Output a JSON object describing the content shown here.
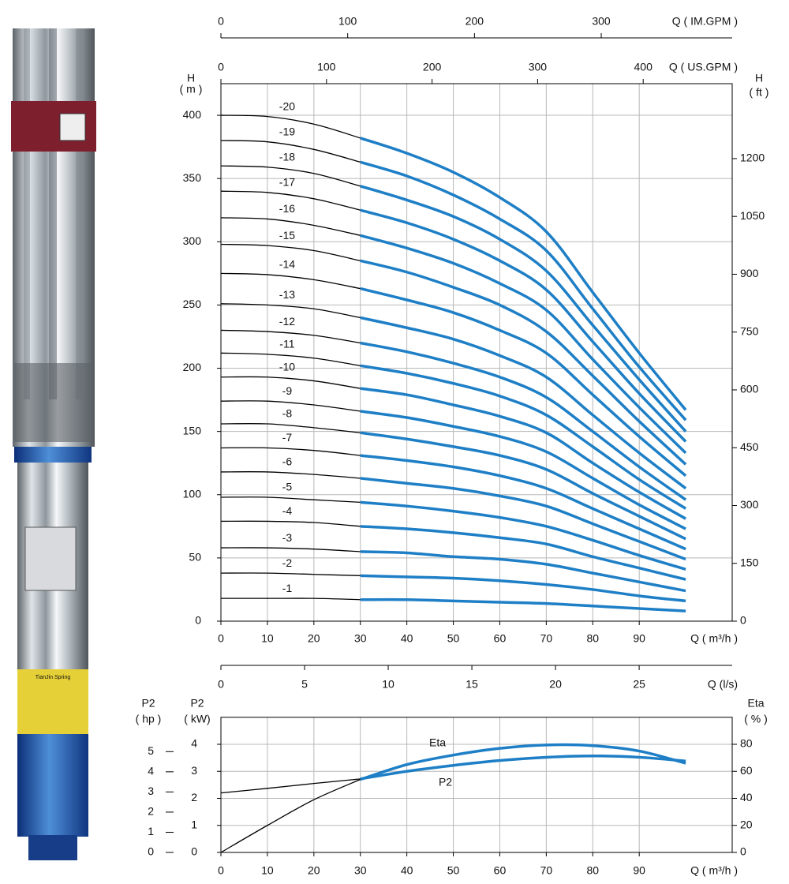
{
  "pump_label": "TianJin Spring",
  "chart_data": [
    {
      "type": "line",
      "x": [
        0,
        10,
        20,
        30,
        40,
        50,
        60,
        70,
        80,
        90,
        100
      ],
      "xlim": [
        0,
        110
      ],
      "xticks": [
        0,
        10,
        20,
        30,
        40,
        50,
        60,
        70,
        80,
        90
      ],
      "xlabel": "Q ( m³/h )",
      "x_axes": [
        {
          "label": "Q ( US.GPM )",
          "lim": [
            0,
            484.3
          ],
          "ticks": [
            0,
            100,
            200,
            300,
            400
          ]
        },
        {
          "label": "Q ( IM.GPM )",
          "lim": [
            0,
            403.3
          ],
          "ticks": [
            0,
            100,
            200,
            300
          ]
        }
      ],
      "ylabel": [
        "H",
        "( m )"
      ],
      "ylim": [
        0,
        425
      ],
      "yticks": [
        0,
        50,
        100,
        150,
        200,
        250,
        300,
        350,
        400
      ],
      "y2label": [
        "H",
        "( ft )"
      ],
      "y2lim": [
        0,
        1394.4
      ],
      "y2ticks": [
        0,
        150,
        300,
        450,
        600,
        750,
        900,
        1050,
        1200
      ],
      "grid": true,
      "operating_range": [
        30,
        100
      ],
      "color": "#1e7fc6",
      "outside_color": "#000000",
      "series": [
        {
          "name": "-20",
          "values": [
            400,
            399,
            393,
            382,
            370,
            355,
            335,
            308,
            260,
            212,
            167
          ]
        },
        {
          "name": "-19",
          "values": [
            380,
            379,
            373,
            363,
            352,
            337,
            318,
            293,
            247,
            201,
            159
          ]
        },
        {
          "name": "-18",
          "values": [
            360,
            359,
            354,
            344,
            333,
            320,
            302,
            277,
            234,
            191,
            150
          ]
        },
        {
          "name": "-17",
          "values": [
            340,
            339,
            334,
            325,
            315,
            302,
            285,
            262,
            221,
            180,
            142
          ]
        },
        {
          "name": "-16",
          "values": [
            319,
            318,
            313,
            305,
            295,
            283,
            267,
            246,
            207,
            169,
            133
          ]
        },
        {
          "name": "-15",
          "values": [
            298,
            297,
            293,
            285,
            276,
            264,
            250,
            229,
            194,
            158,
            124
          ]
        },
        {
          "name": "-14",
          "values": [
            275,
            274,
            270,
            263,
            254,
            244,
            230,
            212,
            179,
            146,
            115
          ]
        },
        {
          "name": "-13",
          "values": [
            251,
            250,
            247,
            240,
            232,
            223,
            210,
            193,
            163,
            133,
            105
          ]
        },
        {
          "name": "-12",
          "values": [
            230,
            229,
            226,
            220,
            213,
            204,
            193,
            177,
            150,
            122,
            96
          ]
        },
        {
          "name": "-11",
          "values": [
            212,
            211,
            208,
            202,
            196,
            188,
            178,
            163,
            138,
            112,
            89
          ]
        },
        {
          "name": "-10",
          "values": [
            193,
            193,
            190,
            184,
            179,
            171,
            162,
            149,
            125,
            102,
            81
          ]
        },
        {
          "name": "-9",
          "values": [
            174,
            174,
            171,
            166,
            161,
            154,
            146,
            134,
            113,
            92,
            73
          ]
        },
        {
          "name": "-8",
          "values": [
            156,
            156,
            153,
            149,
            144,
            138,
            131,
            120,
            101,
            83,
            65
          ]
        },
        {
          "name": "-7",
          "values": [
            137,
            137,
            135,
            131,
            127,
            122,
            115,
            105,
            89,
            73,
            57
          ]
        },
        {
          "name": "-6",
          "values": [
            118,
            118,
            116,
            113,
            109,
            105,
            99,
            91,
            77,
            63,
            49
          ]
        },
        {
          "name": "-5",
          "values": [
            98,
            98,
            96,
            94,
            91,
            87,
            82,
            75,
            64,
            52,
            41
          ]
        },
        {
          "name": "-4",
          "values": [
            79,
            79,
            78,
            75,
            73,
            70,
            66,
            61,
            51,
            42,
            33
          ]
        },
        {
          "name": "-3",
          "values": [
            58,
            58,
            57,
            55,
            54,
            51,
            49,
            45,
            38,
            31,
            24
          ]
        },
        {
          "name": "-2",
          "values": [
            38,
            38,
            37,
            36,
            35,
            34,
            32,
            29,
            25,
            20,
            16
          ]
        },
        {
          "name": "-1",
          "values": [
            18,
            18,
            18,
            17,
            17,
            16,
            15,
            14,
            12,
            10,
            8
          ]
        }
      ]
    },
    {
      "type": "line",
      "x": [
        0,
        10,
        20,
        30,
        40,
        50,
        60,
        70,
        80,
        90,
        100
      ],
      "xlim": [
        0,
        110
      ],
      "xticks": [
        0,
        10,
        20,
        30,
        40,
        50,
        60,
        70,
        80,
        90
      ],
      "xlabel": "Q ( m³/h )",
      "x_axes": [
        {
          "label": "Q (l/s)",
          "lim": [
            0,
            30.56
          ],
          "ticks": [
            0,
            5,
            10,
            15,
            20,
            25
          ]
        }
      ],
      "ylabel": [
        "P2",
        "( kW)"
      ],
      "ylim": [
        0,
        5
      ],
      "yticks": [
        0,
        1,
        2,
        3,
        4
      ],
      "y_axes": [
        {
          "label": [
            "P2",
            "( hp )"
          ],
          "lim": [
            0,
            6.705
          ],
          "ticks": [
            0,
            1,
            2,
            3,
            4,
            5
          ]
        }
      ],
      "y2label": [
        "Eta",
        "( % )"
      ],
      "y2lim": [
        0,
        100
      ],
      "y2ticks": [
        0,
        20,
        40,
        60,
        80
      ],
      "grid": true,
      "operating_range": [
        30,
        100
      ],
      "color": "#1e7fc6",
      "outside_color": "#000000",
      "series": [
        {
          "name": "P2",
          "values": [
            2.2,
            2.37,
            2.55,
            2.72,
            3.0,
            3.22,
            3.4,
            3.52,
            3.57,
            3.52,
            3.38
          ]
        },
        {
          "name": "Eta",
          "axis": "y2",
          "values": [
            0,
            20,
            39,
            54,
            65,
            72,
            77,
            79.5,
            79,
            75,
            66
          ]
        }
      ]
    }
  ]
}
